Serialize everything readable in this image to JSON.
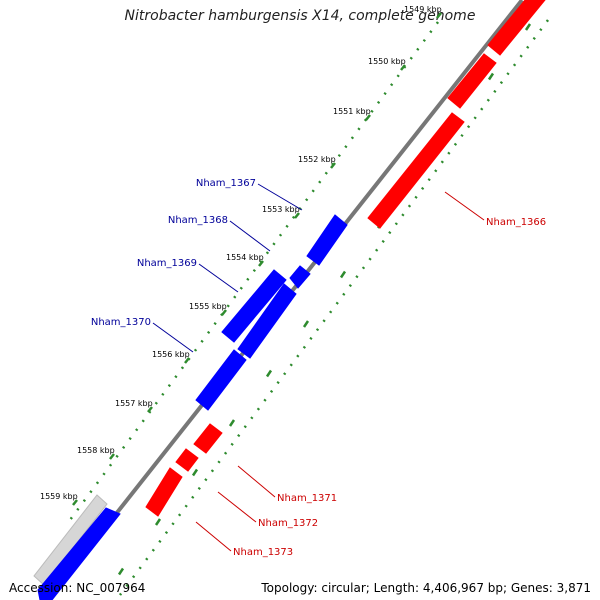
{
  "title": "Nitrobacter hamburgensis X14, complete genome",
  "footer": {
    "accession": "Accession: NC_007964",
    "summary": "Topology: circular; Length: 4,406,967 bp; Genes: 3,871"
  },
  "colors": {
    "forward_gene": "#ff0000",
    "reverse_gene": "#0000ff",
    "backbone": "#808080",
    "ticks": "#2e8b2e",
    "grey_feature": "#c8c8c8"
  },
  "ticks": [
    "1549 kbp",
    "1550 kbp",
    "1551 kbp",
    "1552 kbp",
    "1553 kbp",
    "1554 kbp",
    "1555 kbp",
    "1556 kbp",
    "1557 kbp",
    "1558 kbp",
    "1559 kbp"
  ],
  "genes": {
    "forward": [
      "Nham_1366",
      "Nham_1371",
      "Nham_1372",
      "Nham_1373"
    ],
    "reverse": [
      "Nham_1367",
      "Nham_1368",
      "Nham_1369",
      "Nham_1370"
    ]
  }
}
